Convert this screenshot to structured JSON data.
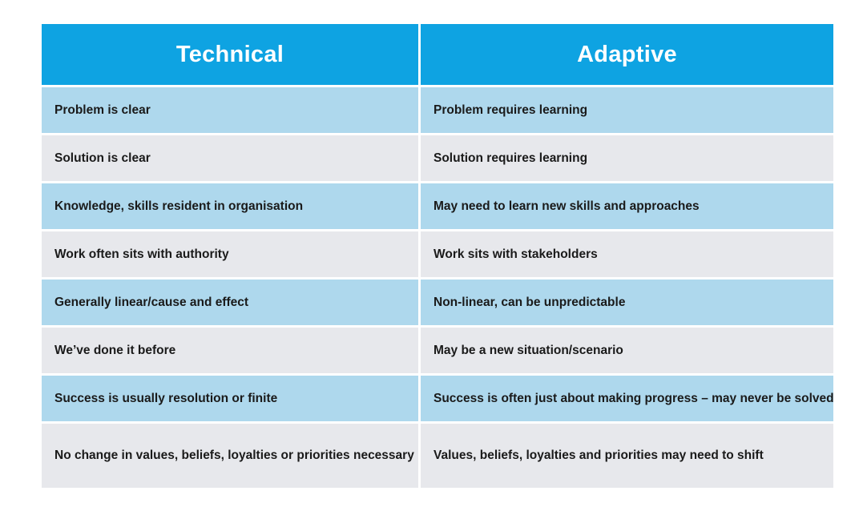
{
  "table": {
    "headers": [
      "Technical",
      "Adaptive"
    ],
    "rows": [
      [
        "Problem is clear",
        "Problem requires learning"
      ],
      [
        "Solution is clear",
        "Solution requires learning"
      ],
      [
        "Knowledge, skills resident in organisation",
        "May need to learn new skills and approaches"
      ],
      [
        "Work often sits with authority",
        "Work sits with stakeholders"
      ],
      [
        "Generally linear/cause and effect",
        "Non-linear, can be unpredictable"
      ],
      [
        "We’ve done it before",
        "May be a new situation/scenario"
      ],
      [
        "Success is usually resolution or finite",
        "Success is often just about making progress – may never be solved"
      ],
      [
        "No change in values, beliefs, loyalties or priorities necessary",
        "Values, beliefs, loyalties and priorities may need to shift"
      ]
    ]
  },
  "colors": {
    "header_bg": "#0ea3e2",
    "row_odd_bg": "#aed8ed",
    "row_even_bg": "#e7e8ec",
    "header_text": "#ffffff",
    "body_text": "#1a1a1a"
  }
}
